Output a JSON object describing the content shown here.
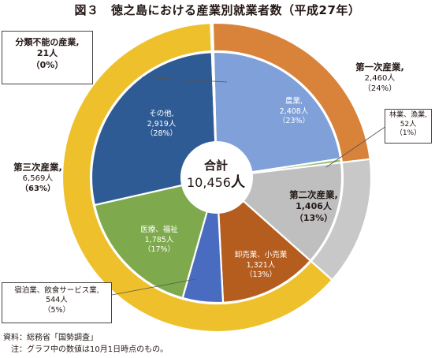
{
  "title": "図３　徳之島における産業別就業者数（平成27年）",
  "center": {
    "label": "合計",
    "value": "10,456",
    "unit": "人"
  },
  "chart_data": {
    "type": "pie",
    "title": "図３　徳之島における産業別就業者数（平成27年）",
    "total": 10456,
    "outer_ring": [
      {
        "name": "第一次産業",
        "value": 2460,
        "value_label": "2,460人",
        "pct": "（24%）",
        "color": "#d9823a"
      },
      {
        "name": "第二次産業",
        "value": 1406,
        "value_label": "1,406人",
        "pct": "（13%）",
        "color": "#c8c8c8"
      },
      {
        "name": "第三次産業",
        "value": 6569,
        "value_label": "6,569人",
        "pct": "（63%）",
        "color": "#eec12c"
      },
      {
        "name": "分類不能の産業",
        "value": 21,
        "value_label": "21人",
        "pct": "（0%）",
        "color": "#ffffff"
      }
    ],
    "inner_ring": [
      {
        "name": "農業",
        "value": 2408,
        "value_label": "2,408人",
        "pct": "（23%）",
        "color": "#7fa0d8"
      },
      {
        "name": "林業、漁業",
        "value": 52,
        "value_label": "52人",
        "pct": "（1%）",
        "color": "#9bc47a"
      },
      {
        "name": "第二次産業",
        "value": 1406,
        "value_label": "1,406人",
        "pct": "（13%）",
        "color": "#bfbfbf"
      },
      {
        "name": "卸売業、小売業",
        "value": 1321,
        "value_label": "1,321人",
        "pct": "（13%）",
        "color": "#b55d1f"
      },
      {
        "name": "宿泊業、飲食サービス業",
        "value": 544,
        "value_label": "544人",
        "pct": "（5%）",
        "color": "#4a6cc0"
      },
      {
        "name": "医療、福祉",
        "value": 1785,
        "value_label": "1,785人",
        "pct": "（17%）",
        "color": "#7eaa4d"
      },
      {
        "name": "その他",
        "value": 2919,
        "value_label": "2,919人",
        "pct": "（28%）",
        "color": "#2f5b94"
      },
      {
        "name": "分類不能の産業",
        "value": 21,
        "value_label": "21人",
        "pct": "（0%）",
        "color": "#ffffff"
      }
    ]
  },
  "labels": {
    "nogyo": {
      "name": "農業,",
      "value": "2,408人",
      "pct": "（23%）"
    },
    "sonota": {
      "name": "その他,",
      "value": "2,919人",
      "pct": "（28%）"
    },
    "iryo": {
      "name": "医療、福祉",
      "value": "1,785人",
      "pct": "（17%）"
    },
    "oroshi": {
      "name": "卸売業、小売業",
      "value": "1,321人",
      "pct": "（13%）"
    },
    "niji": {
      "name": "第二次産業,",
      "value": "1,406人",
      "pct": "（13%）"
    },
    "ichiji": {
      "name": "第一次産業,",
      "value": "2,460人",
      "pct": "（24%）"
    },
    "sanji": {
      "name": "第三次産業,",
      "value": "6,569人",
      "pct": "（63%）"
    },
    "bunrui": {
      "name": "分類不能の産業,",
      "value": "21人",
      "pct": "（0%）"
    },
    "ringyo": {
      "name": "林業、漁業,",
      "value": "52人",
      "pct": "（1%）"
    },
    "shukuhaku": {
      "name": "宿泊業、飲食サービス業,",
      "value": "544人",
      "pct": "（5%）"
    }
  },
  "footnote": {
    "source": "資料：総務省「国勢調査」",
    "note": "　注：グラフ中の数値は10月1日時点のもの。"
  }
}
